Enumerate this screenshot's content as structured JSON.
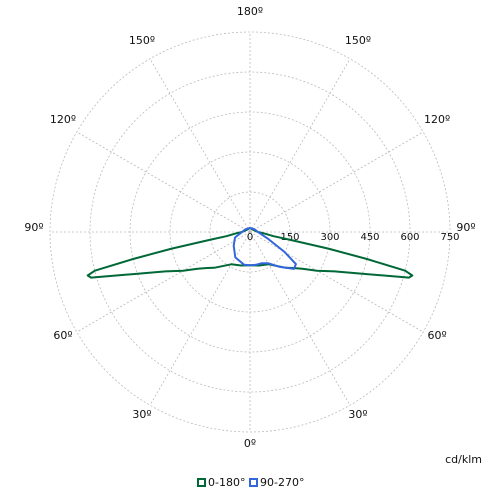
{
  "chart_data": {
    "type": "polar",
    "unit_label": "cd/klm",
    "rlim": [
      0,
      750
    ],
    "rticks": [
      0,
      150,
      300,
      450,
      600,
      750
    ],
    "theta_ticks": [
      {
        "value": 0,
        "label": "0º"
      },
      {
        "value": 30,
        "label": "30º"
      },
      {
        "value": 60,
        "label": "60º"
      },
      {
        "value": 90,
        "label": "90º"
      },
      {
        "value": 120,
        "label": "120º"
      },
      {
        "value": 150,
        "label": "150º"
      },
      {
        "value": 180,
        "label": "180º"
      },
      {
        "value": -30,
        "label": "30º"
      },
      {
        "value": -60,
        "label": "60º"
      },
      {
        "value": -90,
        "label": "90º"
      },
      {
        "value": -120,
        "label": "120º"
      },
      {
        "value": -150,
        "label": "150º"
      }
    ],
    "grid": true,
    "series": [
      {
        "name": "0-180°",
        "color": "#006837",
        "theta": [
          -180,
          -120,
          -90,
          -85,
          -80,
          -79,
          -78,
          -77,
          -76,
          -75,
          -74,
          -70,
          -65,
          -60,
          -55,
          -50,
          -45,
          -30,
          -15,
          0,
          15,
          30,
          45,
          50,
          55,
          60,
          65,
          70,
          74,
          75,
          76,
          77,
          78,
          79,
          80,
          85,
          90,
          120,
          180
        ],
        "values": [
          15,
          15,
          30,
          50,
          90,
          150,
          300,
          450,
          600,
          630,
          620,
          460,
          350,
          290,
          240,
          210,
          190,
          140,
          130,
          125,
          130,
          140,
          190,
          210,
          240,
          290,
          350,
          460,
          620,
          630,
          600,
          450,
          300,
          150,
          90,
          50,
          30,
          15,
          15
        ]
      },
      {
        "name": "90-270°",
        "color": "#3366dd",
        "theta": [
          -180,
          -150,
          -120,
          -90,
          -70,
          -50,
          -30,
          -10,
          0,
          10,
          20,
          30,
          40,
          50,
          55,
          60,
          70,
          90,
          120,
          150,
          180
        ],
        "values": [
          15,
          15,
          20,
          30,
          60,
          80,
          110,
          125,
          125,
          125,
          125,
          135,
          170,
          215,
          210,
          150,
          70,
          30,
          20,
          15,
          15
        ]
      }
    ]
  }
}
